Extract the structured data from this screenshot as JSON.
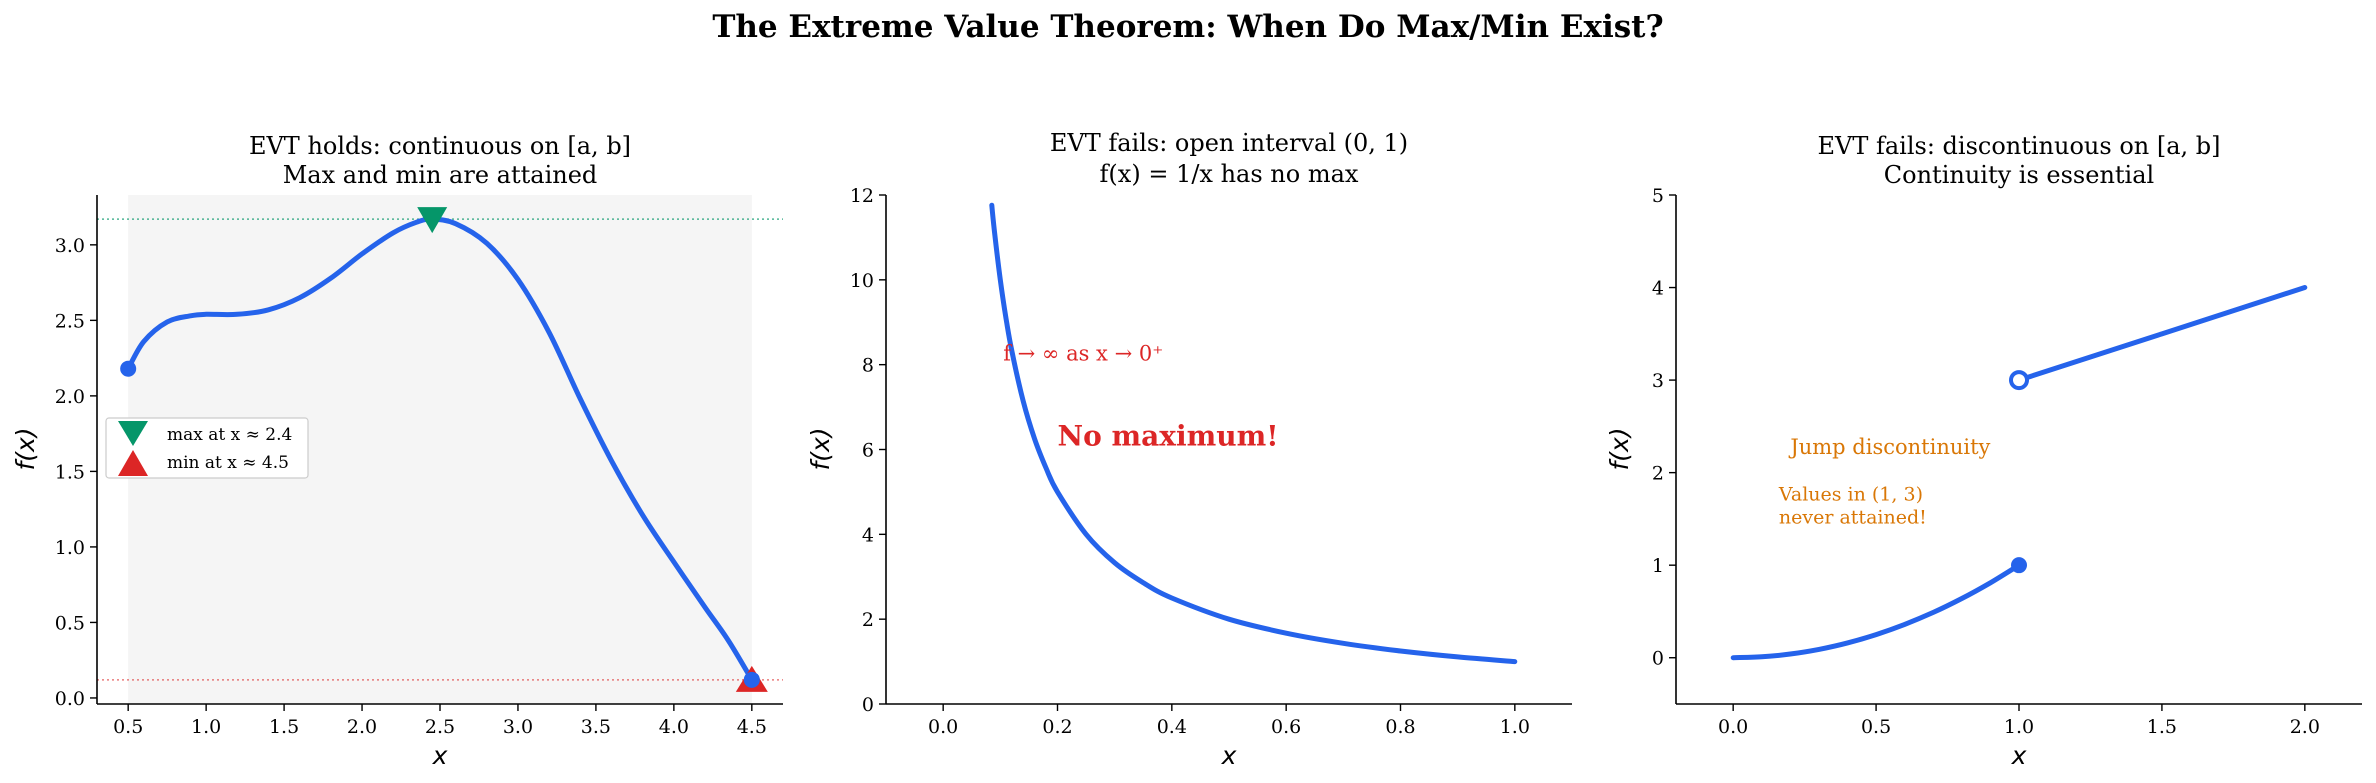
{
  "figure": {
    "suptitle": "The Extreme Value Theorem: When Do Max/Min Exist?"
  },
  "colors": {
    "curve": "#2563eb",
    "max_marker": "#059669",
    "min_marker": "#dc2626",
    "annotation_red": "#dc2626",
    "annotation_orange": "#d97706",
    "shade": "#f5f5f5"
  },
  "chart_data": [
    {
      "type": "line",
      "title_line1": "EVT holds: continuous on [a, b]",
      "title_line2": "Max and min are attained",
      "xlabel": "x",
      "ylabel": "f(x)",
      "xlim": [
        0.3,
        4.7
      ],
      "ylim": [
        -0.04,
        3.33
      ],
      "xticks": [
        0.5,
        1.0,
        1.5,
        2.0,
        2.5,
        3.0,
        3.5,
        4.0,
        4.5
      ],
      "yticks": [
        0.0,
        0.5,
        1.0,
        1.5,
        2.0,
        2.5,
        3.0
      ],
      "grid": false,
      "shaded_interval": [
        0.5,
        4.5
      ],
      "series": [
        {
          "x": [
            0.5,
            0.6,
            0.75,
            0.9,
            1.0,
            1.2,
            1.4,
            1.6,
            1.8,
            2.0,
            2.2,
            2.35,
            2.45,
            2.6,
            2.8,
            3.0,
            3.2,
            3.4,
            3.6,
            3.8,
            4.0,
            4.2,
            4.35,
            4.5
          ],
          "y": [
            2.18,
            2.36,
            2.49,
            2.53,
            2.54,
            2.54,
            2.57,
            2.65,
            2.78,
            2.94,
            3.08,
            3.15,
            3.17,
            3.14,
            3.01,
            2.77,
            2.42,
            1.98,
            1.57,
            1.21,
            0.9,
            0.6,
            0.38,
            0.12
          ]
        }
      ],
      "endpoints": [
        {
          "x": 0.5,
          "y": 2.18
        },
        {
          "x": 4.5,
          "y": 0.12
        }
      ],
      "max_point": {
        "x": 2.45,
        "y": 3.17
      },
      "min_point": {
        "x": 4.5,
        "y": 0.12
      },
      "legend": {
        "placement": "center-left",
        "entries": [
          "max at x ≈ 2.4",
          "min at x ≈ 4.5"
        ]
      }
    },
    {
      "type": "line",
      "title_line1": "EVT fails: open interval (0, 1)",
      "title_line2": "f(x) = 1/x has no max",
      "xlabel": "x",
      "ylabel": "f(x)",
      "xlim": [
        -0.1,
        1.1
      ],
      "ylim": [
        0,
        12
      ],
      "xticks": [
        0.0,
        0.2,
        0.4,
        0.6,
        0.8,
        1.0
      ],
      "yticks": [
        0,
        2,
        4,
        6,
        8,
        10,
        12
      ],
      "grid": false,
      "series": [
        {
          "x": [
            0.085,
            0.09,
            0.1,
            0.11,
            0.12,
            0.14,
            0.16,
            0.18,
            0.2,
            0.25,
            0.3,
            0.35,
            0.4,
            0.5,
            0.6,
            0.7,
            0.8,
            0.9,
            1.0
          ],
          "y": [
            11.76,
            11.11,
            10.0,
            9.09,
            8.33,
            7.14,
            6.25,
            5.56,
            5.0,
            4.0,
            3.33,
            2.86,
            2.5,
            2.0,
            1.67,
            1.43,
            1.25,
            1.11,
            1.0
          ]
        }
      ],
      "annotations": [
        {
          "text": "f → ∞ as x → 0⁺",
          "x": 0.105,
          "y": 8.1
        },
        {
          "text": "No maximum!",
          "x": 0.2,
          "y": 6.1
        }
      ]
    },
    {
      "type": "line",
      "title_line1": "EVT fails: discontinuous on [a, b]",
      "title_line2": "Continuity is essential",
      "xlabel": "x",
      "ylabel": "f(x)",
      "xlim": [
        -0.2,
        2.2
      ],
      "ylim": [
        -0.5,
        5
      ],
      "xticks": [
        0.0,
        0.5,
        1.0,
        1.5,
        2.0
      ],
      "yticks": [
        0,
        1,
        2,
        3,
        4,
        5
      ],
      "grid": false,
      "series": [
        {
          "x": [
            0.0,
            0.1,
            0.2,
            0.3,
            0.4,
            0.5,
            0.6,
            0.7,
            0.8,
            0.9,
            1.0
          ],
          "y": [
            0.0,
            0.01,
            0.04,
            0.09,
            0.16,
            0.25,
            0.36,
            0.49,
            0.64,
            0.81,
            1.0
          ]
        },
        {
          "x": [
            1.0,
            2.0
          ],
          "y": [
            3.0,
            4.0
          ]
        }
      ],
      "closed_point": {
        "x": 1.0,
        "y": 1.0
      },
      "open_point": {
        "x": 1.0,
        "y": 3.0
      },
      "annotations": [
        {
          "text": "Jump discontinuity",
          "x": 0.2,
          "y": 2.2
        },
        {
          "text_line1": "Values in (1, 3)",
          "text_line2": "never attained!",
          "x": 0.16,
          "y": 1.7
        }
      ]
    }
  ]
}
